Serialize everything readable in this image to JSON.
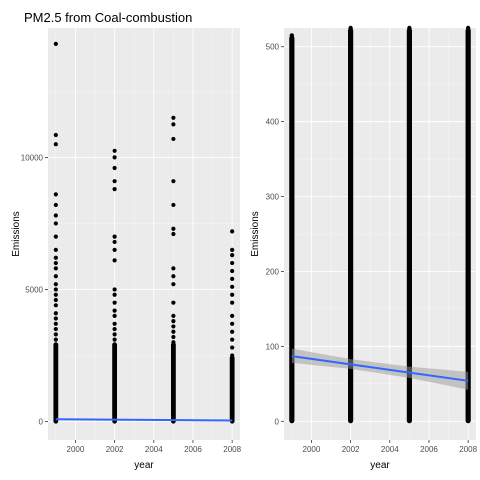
{
  "chart_data": [
    {
      "type": "scatter",
      "title": "PM2.5 from Coal-combustion",
      "xlabel": "year",
      "ylabel": "Emissions",
      "x_ticks": [
        2000,
        2002,
        2004,
        2006,
        2008
      ],
      "y_ticks": [
        0,
        5000,
        10000
      ],
      "xlim": [
        1998.6,
        2008.4
      ],
      "ylim": [
        -700,
        14900
      ],
      "grid": true,
      "series": [
        {
          "x": 1999,
          "points": [
            14300,
            10850,
            10500,
            8600,
            8200,
            7800,
            7500,
            7000,
            6500,
            6200,
            6000,
            5800,
            5500,
            5200,
            5000,
            4800,
            4600,
            4400,
            4100,
            3900,
            3700,
            3500,
            3300,
            3100,
            2900,
            2700,
            2500,
            2300,
            2100,
            1900,
            1700,
            1500,
            1300,
            1100,
            900,
            700,
            500,
            300,
            150,
            50,
            0
          ]
        },
        {
          "x": 2002,
          "points": [
            10250,
            10000,
            9600,
            9100,
            8800,
            7000,
            6800,
            6500,
            6100,
            5000,
            4800,
            4500,
            4200,
            4000,
            3700,
            3500,
            3300,
            3100,
            2900,
            2700,
            2500,
            2300,
            2100,
            1900,
            1700,
            1500,
            1300,
            1100,
            900,
            700,
            500,
            300,
            150,
            50,
            0
          ]
        },
        {
          "x": 2005,
          "points": [
            11500,
            11250,
            10700,
            9100,
            8200,
            7300,
            7100,
            5800,
            5500,
            5200,
            4500,
            4000,
            3800,
            3600,
            3400,
            3200,
            3000,
            2800,
            2600,
            2400,
            2200,
            2000,
            1800,
            1600,
            1400,
            1200,
            1000,
            800,
            600,
            400,
            200,
            100,
            0
          ]
        },
        {
          "x": 2008,
          "points": [
            7200,
            6500,
            6300,
            6000,
            5700,
            5400,
            5100,
            4800,
            4500,
            4000,
            3700,
            3400,
            3100,
            2800,
            2500,
            2200,
            2000,
            1800,
            1600,
            1400,
            1200,
            1000,
            800,
            600,
            400,
            200,
            100,
            0
          ]
        }
      ],
      "trend": {
        "x": [
          1999,
          2008
        ],
        "y": [
          85,
          40
        ]
      }
    },
    {
      "type": "scatter",
      "title": "",
      "xlabel": "year",
      "ylabel": "Emissions",
      "x_ticks": [
        2000,
        2002,
        2004,
        2006,
        2008
      ],
      "y_ticks": [
        0,
        100,
        200,
        300,
        400,
        500
      ],
      "xlim": [
        1998.6,
        2008.4
      ],
      "ylim": [
        -25,
        525
      ],
      "grid": true,
      "series": [
        {
          "x": 1999,
          "dense_range": [
            0,
            515
          ]
        },
        {
          "x": 2002,
          "dense_range": [
            0,
            525
          ]
        },
        {
          "x": 2005,
          "dense_range": [
            0,
            525
          ]
        },
        {
          "x": 2008,
          "dense_range": [
            0,
            525
          ]
        }
      ],
      "trend": {
        "x": [
          1999,
          2002,
          2005,
          2008
        ],
        "y": [
          87,
          76,
          65,
          54
        ],
        "ci_low": [
          78,
          70,
          58,
          42
        ],
        "ci_high": [
          97,
          83,
          73,
          66
        ]
      }
    }
  ],
  "colors": {
    "panel": "#ebebeb",
    "point": "#000000",
    "trend": "#3366ff",
    "ribbon": "#999999"
  }
}
